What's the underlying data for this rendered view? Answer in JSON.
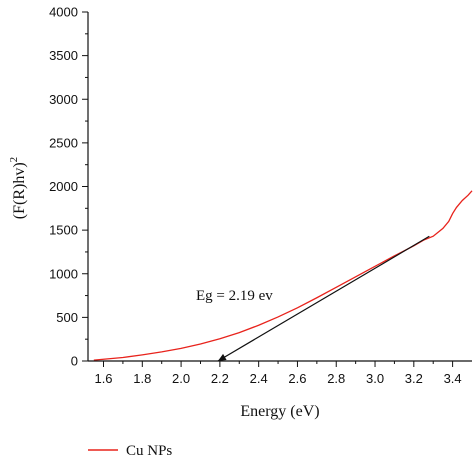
{
  "chart_data": {
    "type": "line",
    "xlabel": "Energy (eV)",
    "ylabel": "(F(R)hv)",
    "ylabel_superscript": "2",
    "xlim": [
      1.52,
      3.5
    ],
    "ylim": [
      0,
      4000
    ],
    "x_ticks": [
      "1.6",
      "1.8",
      "2.0",
      "2.2",
      "2.4",
      "2.6",
      "2.8",
      "3.0",
      "3.2",
      "3.4"
    ],
    "y_ticks": [
      "0",
      "500",
      "1000",
      "1500",
      "2000",
      "2500",
      "3000",
      "3500",
      "4000"
    ],
    "grid": false,
    "legend_position": "bottom-left",
    "colors": {
      "series": "#e8231c",
      "fit": "#111111",
      "axis": "#111111"
    },
    "series": [
      {
        "name": "Cu NPs",
        "x": [
          1.55,
          1.6,
          1.7,
          1.8,
          1.9,
          2.0,
          2.1,
          2.2,
          2.3,
          2.4,
          2.5,
          2.6,
          2.7,
          2.8,
          2.9,
          3.0,
          3.1,
          3.2,
          3.25,
          3.3,
          3.35,
          3.38,
          3.4,
          3.42,
          3.45,
          3.48,
          3.5
        ],
        "y": [
          10,
          20,
          40,
          70,
          105,
          145,
          195,
          255,
          325,
          410,
          505,
          610,
          725,
          845,
          965,
          1085,
          1205,
          1320,
          1385,
          1430,
          1520,
          1600,
          1690,
          1760,
          1840,
          1900,
          1950
        ]
      }
    ],
    "fit_line": {
      "x": [
        2.19,
        3.28
      ],
      "y": [
        0,
        1430
      ]
    },
    "annotation": {
      "text": "Eg = 2.19 ev",
      "x": 2.19,
      "y": 0
    }
  }
}
